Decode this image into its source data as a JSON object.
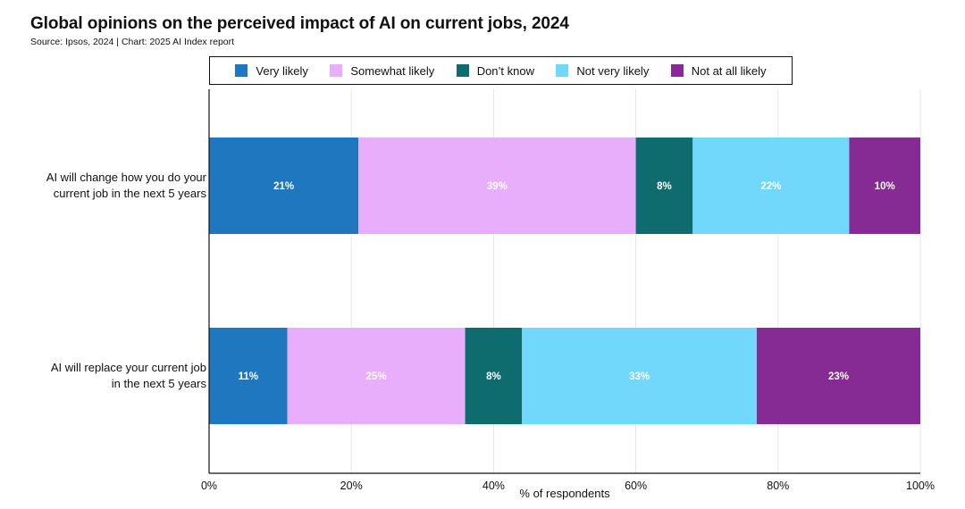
{
  "title": "Global opinions on the perceived impact of AI on current jobs, 2024",
  "subtitle": "Source: Ipsos, 2024 | Chart: 2025 AI Index report",
  "chart_data": {
    "type": "bar",
    "orientation": "horizontal",
    "stacked": true,
    "title": "Global opinions on the perceived impact of AI on current jobs, 2024",
    "subtitle": "Source: Ipsos, 2024 | Chart: 2025 AI Index report",
    "xlabel": "% of respondents",
    "ylabel": "",
    "xlim": [
      0,
      100
    ],
    "x_ticks": [
      "0%",
      "20%",
      "40%",
      "60%",
      "80%",
      "100%"
    ],
    "x_tick_values": [
      0,
      20,
      40,
      60,
      80,
      100
    ],
    "grid": true,
    "legend_position": "top",
    "categories": [
      [
        "AI will change how you do your",
        "current job in the next 5 years"
      ],
      [
        "AI will replace your current job",
        "in the next 5 years"
      ]
    ],
    "series": [
      {
        "name": "Very likely",
        "color": "#1f77c0",
        "values": [
          21,
          11
        ],
        "labels": [
          "21%",
          "11%"
        ]
      },
      {
        "name": "Somewhat likely",
        "color": "#e8aefc",
        "values": [
          39,
          25
        ],
        "labels": [
          "39%",
          "25%"
        ]
      },
      {
        "name": "Don’t know",
        "color": "#0e6b6e",
        "values": [
          8,
          8
        ],
        "labels": [
          "8%",
          "8%"
        ]
      },
      {
        "name": "Not very likely",
        "color": "#72d8fb",
        "values": [
          22,
          33
        ],
        "labels": [
          "22%",
          "33%"
        ]
      },
      {
        "name": "Not at all likely",
        "color": "#862a94",
        "values": [
          10,
          23
        ],
        "labels": [
          "10%",
          "23%"
        ]
      }
    ]
  }
}
